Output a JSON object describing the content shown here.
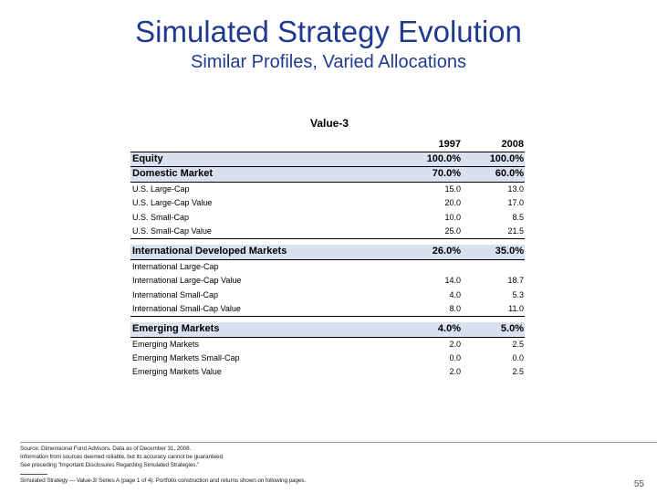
{
  "header": {
    "title": "Simulated Strategy Evolution",
    "subtitle": "Similar Profiles, Varied Allocations"
  },
  "table": {
    "title": "Value-3",
    "columns": [
      "1997",
      "2008"
    ],
    "rows": [
      {
        "label": "Equity",
        "v1997": "100.0%",
        "v2008": "100.0%"
      },
      {
        "label": "Domestic Market",
        "v1997": "70.0%",
        "v2008": "60.0%"
      },
      {
        "label": "U.S. Large-Cap",
        "v1997": "15.0",
        "v2008": "13.0"
      },
      {
        "label": "U.S. Large-Cap Value",
        "v1997": "20.0",
        "v2008": "17.0"
      },
      {
        "label": "U.S. Small-Cap",
        "v1997": "10.0",
        "v2008": "8.5"
      },
      {
        "label": "U.S. Small-Cap Value",
        "v1997": "25.0",
        "v2008": "21.5"
      },
      {
        "label": "International Developed Markets",
        "v1997": "26.0%",
        "v2008": "35.0%"
      },
      {
        "label": "International Large-Cap",
        "v1997": "",
        "v2008": ""
      },
      {
        "label": "International Large-Cap Value",
        "v1997": "14.0",
        "v2008": "18.7"
      },
      {
        "label": "International Small-Cap",
        "v1997": "4.0",
        "v2008": "5.3"
      },
      {
        "label": "International Small-Cap Value",
        "v1997": "8.0",
        "v2008": "11.0"
      },
      {
        "label": "Emerging Markets",
        "v1997": "4.0%",
        "v2008": "5.0%"
      },
      {
        "label": "Emerging Markets",
        "v1997": "2.0",
        "v2008": "2.5"
      },
      {
        "label": "Emerging Markets Small-Cap",
        "v1997": "0.0",
        "v2008": "0.0"
      },
      {
        "label": "Emerging Markets Value",
        "v1997": "2.0",
        "v2008": "2.5"
      }
    ]
  },
  "footer": {
    "source": "Source: Dimensional Fund Advisors. Data as of December 31, 2008.",
    "reliability": "Information from sources deemed reliable, but its accuracy cannot be guaranteed.",
    "disclosures": "See preceding \"Important Disclosures Regarding Simulated Strategies.\"",
    "note": "Simulated Strategy — Value-3/ Series A (page 1 of 4). Portfolio construction and returns shown on following pages.",
    "page_number": "55"
  },
  "colors": {
    "title_blue": "#1f3a8f",
    "row_highlight": "#d9e1f1"
  }
}
